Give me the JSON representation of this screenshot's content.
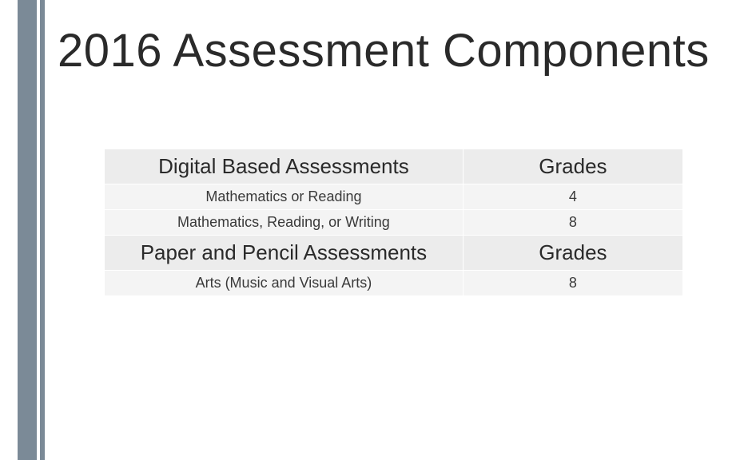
{
  "title": "2016 Assessment Components",
  "colors": {
    "accent_bar": "#7b8a97",
    "header_bg": "#ececec",
    "row_bg": "#f4f4f4",
    "title_color": "#2a2a2a",
    "text_color": "#3a3a3a"
  },
  "table": {
    "sections": [
      {
        "header": {
          "subject": "Digital Based Assessments",
          "grade": "Grades"
        },
        "rows": [
          {
            "subject": "Mathematics or Reading",
            "grade": "4"
          },
          {
            "subject": "Mathematics,  Reading, or Writing",
            "grade": "8"
          }
        ]
      },
      {
        "header": {
          "subject": "Paper and Pencil Assessments",
          "grade": "Grades"
        },
        "rows": [
          {
            "subject": "Arts (Music and Visual Arts)",
            "grade": "8"
          }
        ]
      }
    ]
  }
}
